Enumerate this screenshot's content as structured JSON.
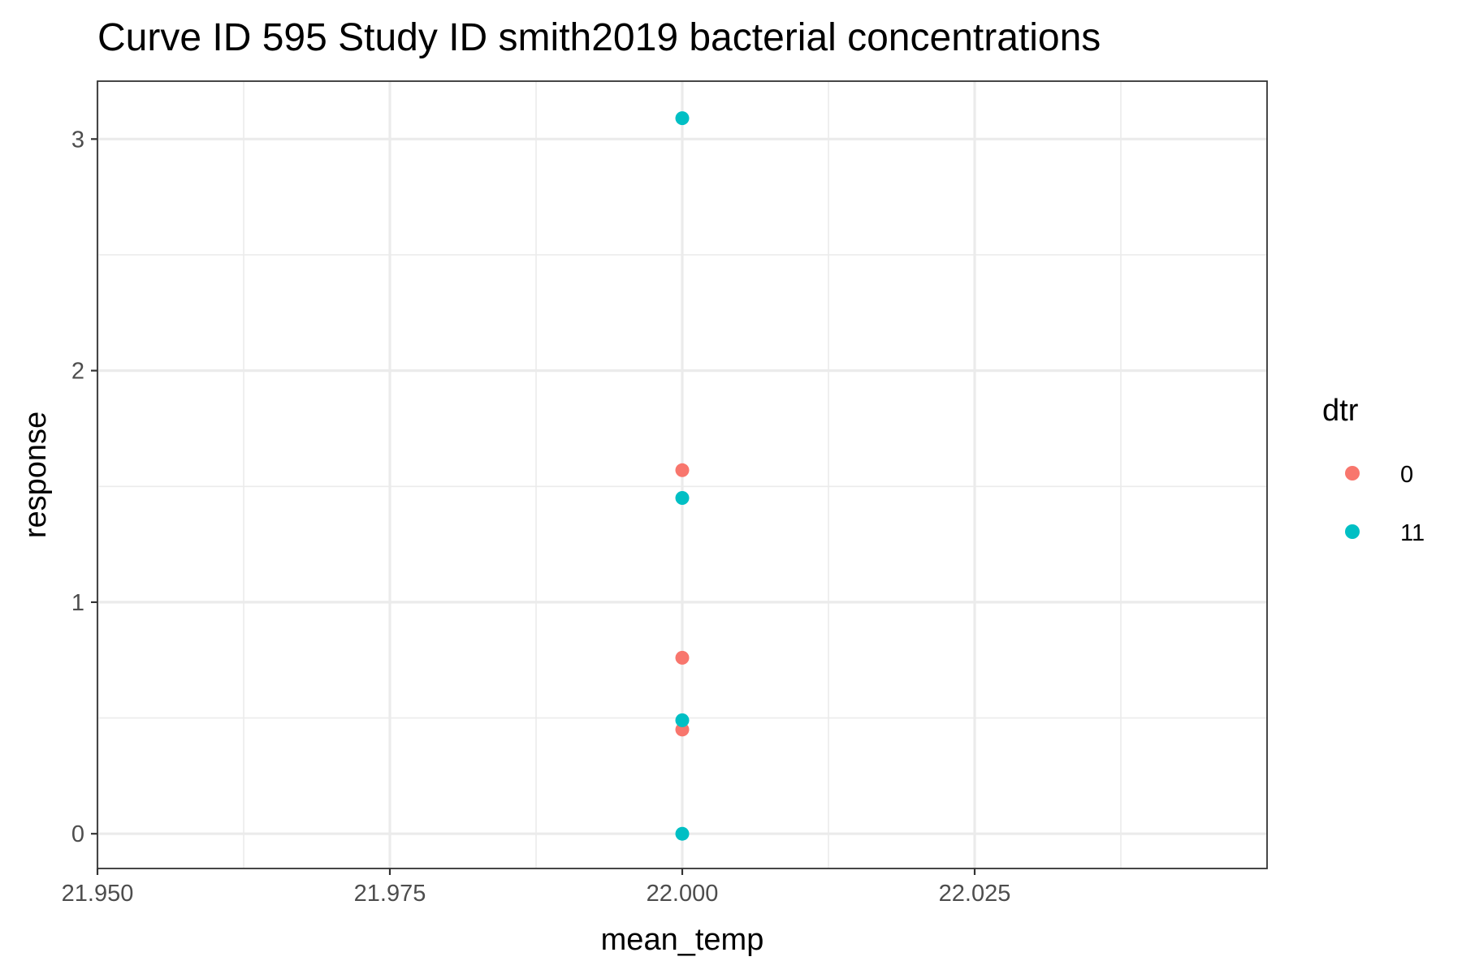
{
  "chart_data": {
    "type": "scatter",
    "title": "Curve ID 595 Study ID smith2019 bacterial concentrations",
    "xlabel": "mean_temp",
    "ylabel": "response",
    "xlim": [
      21.95,
      22.05
    ],
    "ylim": [
      -0.15,
      3.25
    ],
    "x_ticks": [
      21.95,
      21.975,
      22.0,
      22.025
    ],
    "x_tick_labels": [
      "21.950",
      "21.975",
      "22.000",
      "22.025"
    ],
    "y_ticks": [
      0,
      1,
      2,
      3
    ],
    "y_tick_labels": [
      "0",
      "1",
      "2",
      "3"
    ],
    "grid": true,
    "legend": {
      "title": "dtr",
      "placement": "right"
    },
    "series": [
      {
        "name": "0",
        "color": "#F8766D",
        "points": [
          {
            "x": 22.0,
            "y": 1.57
          },
          {
            "x": 22.0,
            "y": 0.76
          },
          {
            "x": 22.0,
            "y": 0.45
          }
        ]
      },
      {
        "name": "11",
        "color": "#00BFC4",
        "points": [
          {
            "x": 22.0,
            "y": 3.09
          },
          {
            "x": 22.0,
            "y": 1.45
          },
          {
            "x": 22.0,
            "y": 0.49
          },
          {
            "x": 22.0,
            "y": 0.0
          }
        ]
      }
    ]
  }
}
